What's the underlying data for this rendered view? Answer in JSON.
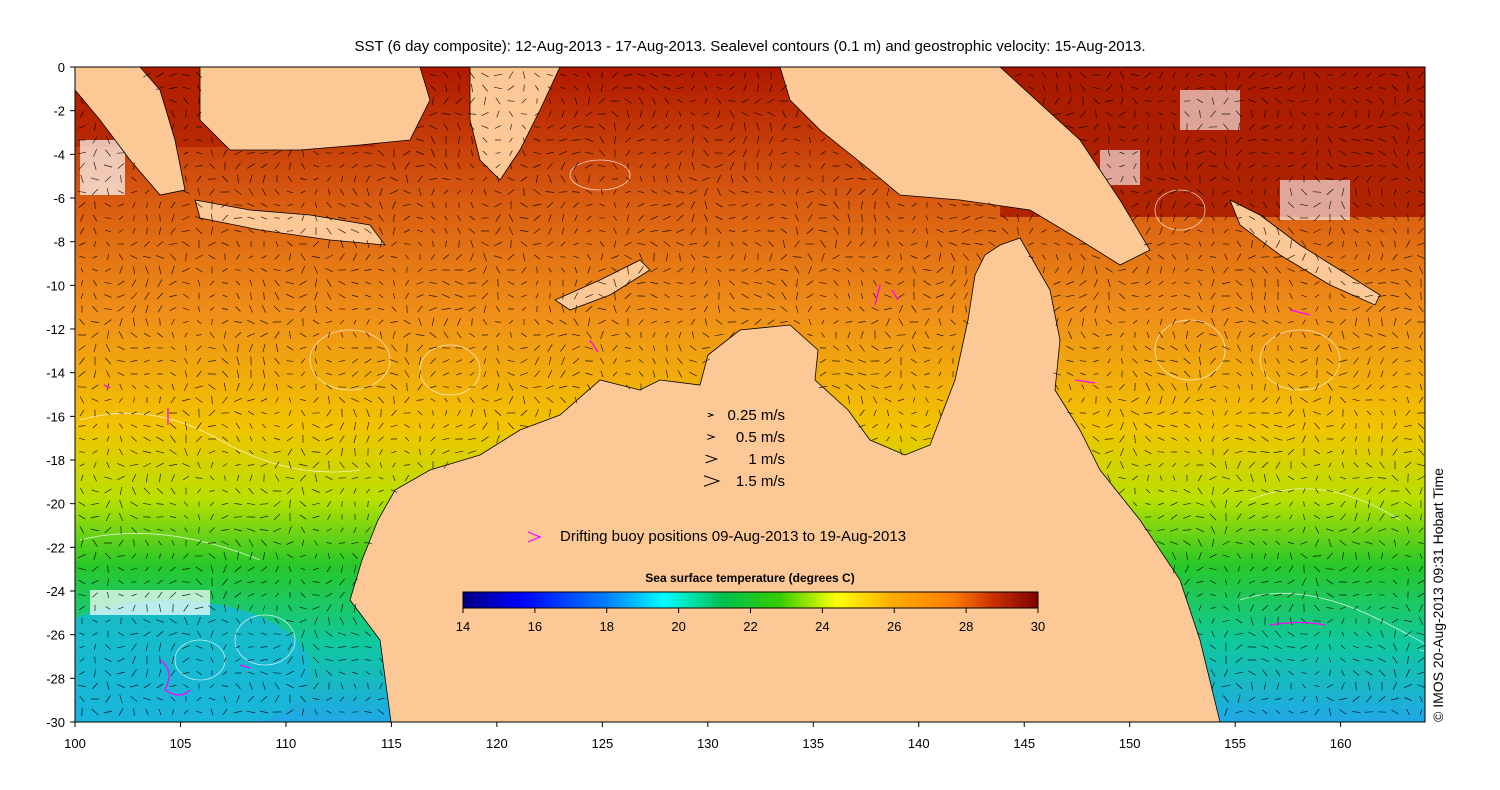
{
  "title": "SST (6 day composite): 12-Aug-2013 - 17-Aug-2013. Sealevel contours (0.1 m) and geostrophic velocity: 15-Aug-2013.",
  "copyright": "© IMOS 20-Aug-2013 09:31 Hobart Time",
  "axes": {
    "lon_range": [
      100,
      164
    ],
    "lat_range": [
      -30,
      0
    ],
    "x_ticks": [
      "100",
      "105",
      "110",
      "115",
      "120",
      "125",
      "130",
      "135",
      "140",
      "145",
      "150",
      "155",
      "160"
    ],
    "y_ticks": [
      "0",
      "-2",
      "-4",
      "-6",
      "-8",
      "-10",
      "-12",
      "-14",
      "-16",
      "-18",
      "-20",
      "-22",
      "-24",
      "-26",
      "-28",
      "-30"
    ]
  },
  "velocity_legend": [
    {
      "label": "0.25 m/s",
      "speed": 0.25
    },
    {
      "label": "0.5 m/s",
      "speed": 0.5
    },
    {
      "label": "1 m/s",
      "speed": 1
    },
    {
      "label": "1.5 m/s",
      "speed": 1.5
    }
  ],
  "buoy_legend": {
    "label": "Drifting buoy positions 09-Aug-2013 to 19-Aug-2013",
    "marker_color": "#ff00ff"
  },
  "colorbar": {
    "title": "Sea surface temperature (degrees C)",
    "min": 14,
    "max": 30,
    "ticks": [
      "14",
      "16",
      "18",
      "20",
      "22",
      "24",
      "26",
      "28",
      "30"
    ],
    "colors": [
      "#00007f",
      "#0000ff",
      "#0080ff",
      "#00ffff",
      "#00c050",
      "#33cc00",
      "#ffff00",
      "#ffaa00",
      "#ff7f00",
      "#cc3300",
      "#7f0000"
    ]
  },
  "colors": {
    "land": "#fcc896",
    "contour": "#ffffff",
    "vector": "#000000",
    "missing": "#ffffff"
  }
}
